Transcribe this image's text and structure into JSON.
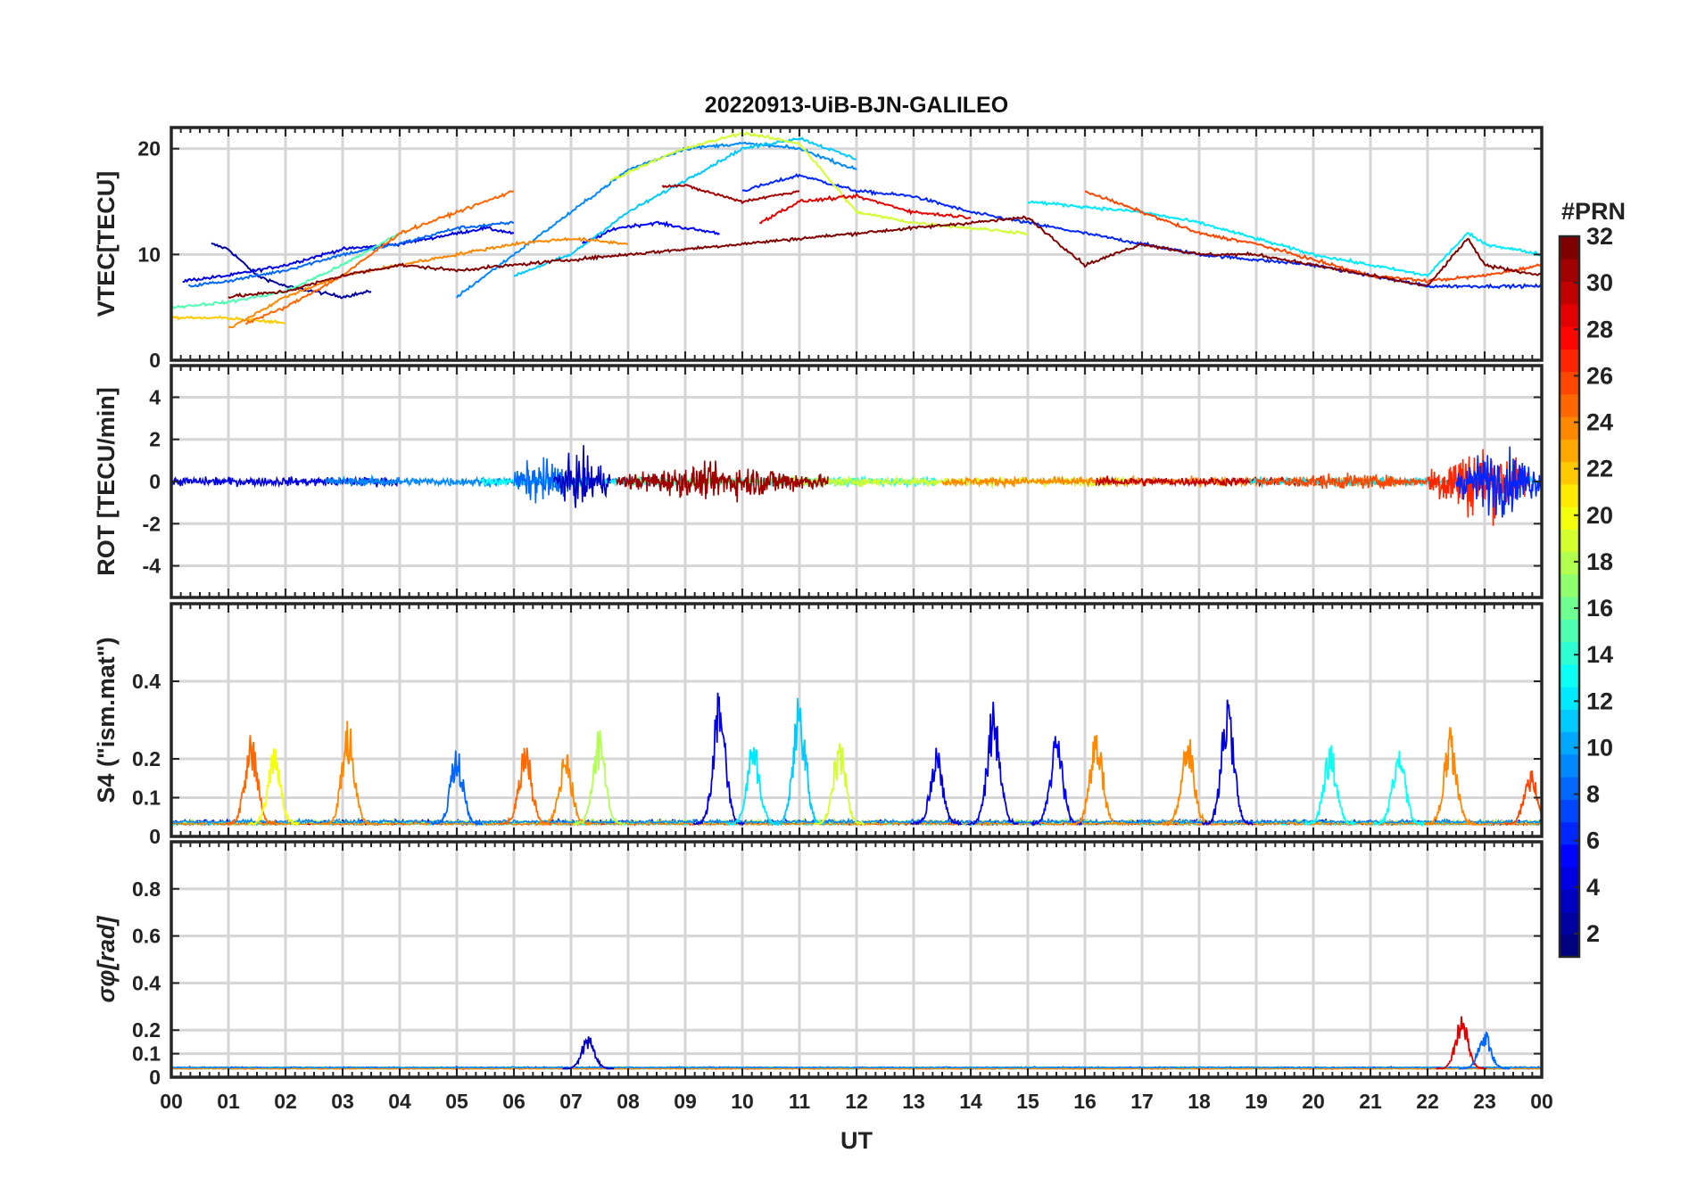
{
  "chart_data": {
    "type": "line",
    "title": "20220913-UiB-BJN-GALILEO",
    "xlabel": "UT",
    "x_ticks": [
      "00",
      "01",
      "02",
      "03",
      "04",
      "05",
      "06",
      "07",
      "08",
      "09",
      "10",
      "11",
      "12",
      "13",
      "14",
      "15",
      "16",
      "17",
      "18",
      "19",
      "20",
      "21",
      "22",
      "23",
      "00"
    ],
    "xlim": [
      0,
      24
    ],
    "grid": true,
    "colorbar": {
      "label": "#PRN",
      "range": [
        1,
        32
      ],
      "ticks": [
        "2",
        "4",
        "6",
        "8",
        "10",
        "12",
        "14",
        "16",
        "18",
        "20",
        "22",
        "24",
        "26",
        "28",
        "30",
        "32"
      ],
      "colormap": "jet"
    },
    "panels": [
      {
        "id": "vtec",
        "ylabel": "VTEC[TECU]",
        "ylim": [
          0,
          22
        ],
        "y_ticks": [
          "0",
          "10",
          "20"
        ],
        "series": [
          {
            "prn": 2,
            "points": [
              [
                0.7,
                11
              ],
              [
                1.0,
                10.5
              ],
              [
                1.5,
                8
              ],
              [
                2.0,
                7
              ],
              [
                2.5,
                6.5
              ],
              [
                3.0,
                6
              ],
              [
                3.5,
                6.5
              ]
            ]
          },
          {
            "prn": 4,
            "points": [
              [
                0.2,
                7.5
              ],
              [
                1.0,
                8
              ],
              [
                2.0,
                9
              ],
              [
                3.0,
                10.5
              ],
              [
                4.0,
                11
              ],
              [
                5.0,
                12
              ],
              [
                5.5,
                12.5
              ],
              [
                6.0,
                12
              ]
            ]
          },
          {
            "prn": 5,
            "points": [
              [
                7.2,
                11
              ],
              [
                7.8,
                12.5
              ],
              [
                8.5,
                13
              ],
              [
                9.0,
                12.5
              ],
              [
                9.6,
                12
              ]
            ]
          },
          {
            "prn": 6,
            "points": [
              [
                10.0,
                16
              ],
              [
                11.0,
                17.5
              ],
              [
                12.0,
                16
              ],
              [
                13.0,
                15.5
              ],
              [
                14.0,
                14
              ],
              [
                15.0,
                13
              ],
              [
                16.0,
                12
              ],
              [
                17.0,
                11
              ],
              [
                18.0,
                10
              ],
              [
                19.0,
                9.5
              ],
              [
                20.0,
                9
              ],
              [
                21.0,
                8
              ],
              [
                22.0,
                7
              ],
              [
                23.0,
                7
              ],
              [
                24.0,
                7
              ]
            ]
          },
          {
            "prn": 8,
            "points": [
              [
                0.3,
                7
              ],
              [
                1.0,
                7.5
              ],
              [
                2.0,
                8.5
              ],
              [
                3.0,
                10
              ],
              [
                4.0,
                11
              ],
              [
                5.0,
                12.5
              ],
              [
                6.0,
                13
              ]
            ]
          },
          {
            "prn": 9,
            "points": [
              [
                5.0,
                6
              ],
              [
                6.0,
                10
              ],
              [
                7.0,
                14
              ],
              [
                8.0,
                18
              ],
              [
                9.0,
                20
              ],
              [
                10.0,
                20.5
              ],
              [
                11.0,
                20
              ],
              [
                12.0,
                18
              ]
            ]
          },
          {
            "prn": 11,
            "points": [
              [
                6.0,
                8
              ],
              [
                7.0,
                10
              ],
              [
                8.0,
                14
              ],
              [
                9.0,
                17
              ],
              [
                10.0,
                20
              ],
              [
                11.0,
                21
              ],
              [
                12.0,
                19
              ]
            ]
          },
          {
            "prn": 12,
            "points": [
              [
                15.0,
                15
              ],
              [
                16.0,
                14.5
              ],
              [
                17.0,
                14
              ],
              [
                18.0,
                13
              ],
              [
                19.0,
                11.5
              ],
              [
                20.0,
                10
              ],
              [
                21.0,
                9
              ],
              [
                22.0,
                8
              ],
              [
                22.7,
                12
              ],
              [
                23.0,
                11
              ],
              [
                24.0,
                10
              ]
            ]
          },
          {
            "prn": 15,
            "points": [
              [
                0.0,
                5
              ],
              [
                1.0,
                5.5
              ],
              [
                2.0,
                6.5
              ],
              [
                3.0,
                9
              ],
              [
                4.0,
                12
              ]
            ]
          },
          {
            "prn": 19,
            "points": [
              [
                7.7,
                17
              ],
              [
                8.5,
                19
              ],
              [
                9.0,
                20
              ],
              [
                10.0,
                21.5
              ],
              [
                11.0,
                20.5
              ],
              [
                12.0,
                14
              ],
              [
                13.0,
                13
              ],
              [
                14.0,
                12.5
              ],
              [
                15.0,
                12
              ]
            ]
          },
          {
            "prn": 22,
            "points": [
              [
                0.0,
                4
              ],
              [
                1.0,
                4
              ],
              [
                2.0,
                3.5
              ]
            ]
          },
          {
            "prn": 24,
            "points": [
              [
                1.0,
                3
              ],
              [
                2.0,
                6
              ],
              [
                3.0,
                8
              ],
              [
                4.0,
                9
              ],
              [
                5.0,
                10
              ],
              [
                6.0,
                11
              ],
              [
                7.0,
                11.5
              ],
              [
                8.0,
                11
              ]
            ]
          },
          {
            "prn": 25,
            "points": [
              [
                1.3,
                3.5
              ],
              [
                2.0,
                5
              ],
              [
                3.0,
                8
              ],
              [
                4.0,
                12
              ],
              [
                5.0,
                14
              ],
              [
                6.0,
                16
              ]
            ]
          },
          {
            "prn": 26,
            "points": [
              [
                16.0,
                16
              ],
              [
                17.0,
                14
              ],
              [
                18.0,
                12
              ],
              [
                19.0,
                11
              ],
              [
                20.0,
                9.5
              ],
              [
                21.0,
                8
              ],
              [
                22.0,
                7.5
              ],
              [
                23.0,
                8
              ],
              [
                24.0,
                9
              ]
            ]
          },
          {
            "prn": 29,
            "points": [
              [
                10.3,
                13
              ],
              [
                11.0,
                15
              ],
              [
                12.0,
                15.5
              ],
              [
                13.0,
                14
              ],
              [
                14.0,
                13.5
              ]
            ]
          },
          {
            "prn": 31,
            "points": [
              [
                8.6,
                16.5
              ],
              [
                9.0,
                16.5
              ],
              [
                10.0,
                15
              ],
              [
                11.0,
                16
              ]
            ]
          },
          {
            "prn": 32,
            "points": [
              [
                1.0,
                6
              ],
              [
                2.0,
                6.5
              ],
              [
                3.0,
                8
              ],
              [
                4.0,
                9
              ],
              [
                5.0,
                8.5
              ],
              [
                6.0,
                9
              ],
              [
                15.0,
                13.5
              ],
              [
                16.0,
                9
              ],
              [
                17.0,
                11
              ],
              [
                18.0,
                10
              ],
              [
                19.0,
                10
              ],
              [
                20.0,
                9
              ],
              [
                21.0,
                8
              ],
              [
                22.0,
                7
              ],
              [
                22.7,
                11.5
              ],
              [
                23.0,
                9
              ],
              [
                24.0,
                8
              ]
            ]
          }
        ]
      },
      {
        "id": "rot",
        "ylabel": "ROT [TECU/min]",
        "ylim": [
          -5.5,
          5.5
        ],
        "y_ticks": [
          "-4",
          "-2",
          "0",
          "2",
          "4"
        ],
        "activity": [
          {
            "prn": 8,
            "range": [
              6.0,
              7.0
            ],
            "amp": 1.8
          },
          {
            "prn": 3,
            "range": [
              6.7,
              7.7
            ],
            "amp": 2.0
          },
          {
            "prn": 31,
            "range": [
              7.8,
              11.5
            ],
            "amp": 1.3
          },
          {
            "prn": 26,
            "range": [
              19.0,
              22.0
            ],
            "amp": 0.6
          },
          {
            "prn": 27,
            "range": [
              22.0,
              23.8
            ],
            "amp": 2.8
          },
          {
            "prn": 6,
            "range": [
              22.5,
              24.0
            ],
            "amp": 2.5
          }
        ],
        "baseline_amp": 0.35
      },
      {
        "id": "s4",
        "ylabel": "S4 (\"ism.mat\")",
        "ylim": [
          0,
          0.6
        ],
        "y_ticks": [
          "0",
          "0.1",
          "0.2",
          "0.4"
        ],
        "peaks": [
          {
            "prn": 25,
            "t": 1.4,
            "v": 0.27
          },
          {
            "prn": 20,
            "t": 1.8,
            "v": 0.23
          },
          {
            "prn": 24,
            "t": 3.1,
            "v": 0.3
          },
          {
            "prn": 8,
            "t": 5.0,
            "v": 0.23
          },
          {
            "prn": 25,
            "t": 6.2,
            "v": 0.24
          },
          {
            "prn": 24,
            "t": 6.9,
            "v": 0.23
          },
          {
            "prn": 18,
            "t": 7.5,
            "v": 0.28
          },
          {
            "prn": 4,
            "t": 9.6,
            "v": 0.38
          },
          {
            "prn": 12,
            "t": 10.2,
            "v": 0.25
          },
          {
            "prn": 11,
            "t": 11.0,
            "v": 0.37
          },
          {
            "prn": 19,
            "t": 11.7,
            "v": 0.25
          },
          {
            "prn": 4,
            "t": 13.4,
            "v": 0.23
          },
          {
            "prn": 4,
            "t": 14.4,
            "v": 0.35
          },
          {
            "prn": 5,
            "t": 15.5,
            "v": 0.27
          },
          {
            "prn": 24,
            "t": 16.2,
            "v": 0.29
          },
          {
            "prn": 24,
            "t": 17.8,
            "v": 0.27
          },
          {
            "prn": 4,
            "t": 18.5,
            "v": 0.36
          },
          {
            "prn": 13,
            "t": 20.3,
            "v": 0.24
          },
          {
            "prn": 13,
            "t": 21.5,
            "v": 0.24
          },
          {
            "prn": 24,
            "t": 22.4,
            "v": 0.28
          },
          {
            "prn": 26,
            "t": 23.8,
            "v": 0.18
          }
        ]
      },
      {
        "id": "sigma",
        "ylabel": "σφ[rad]",
        "ylim": [
          0,
          1.0
        ],
        "y_ticks": [
          "0",
          "0.1",
          "0.2",
          "0.4",
          "0.6",
          "0.8"
        ],
        "peaks": [
          {
            "prn": 3,
            "t": 7.3,
            "v": 0.18
          },
          {
            "prn": 29,
            "t": 22.6,
            "v": 0.26
          },
          {
            "prn": 8,
            "t": 23.0,
            "v": 0.2
          }
        ]
      }
    ]
  }
}
